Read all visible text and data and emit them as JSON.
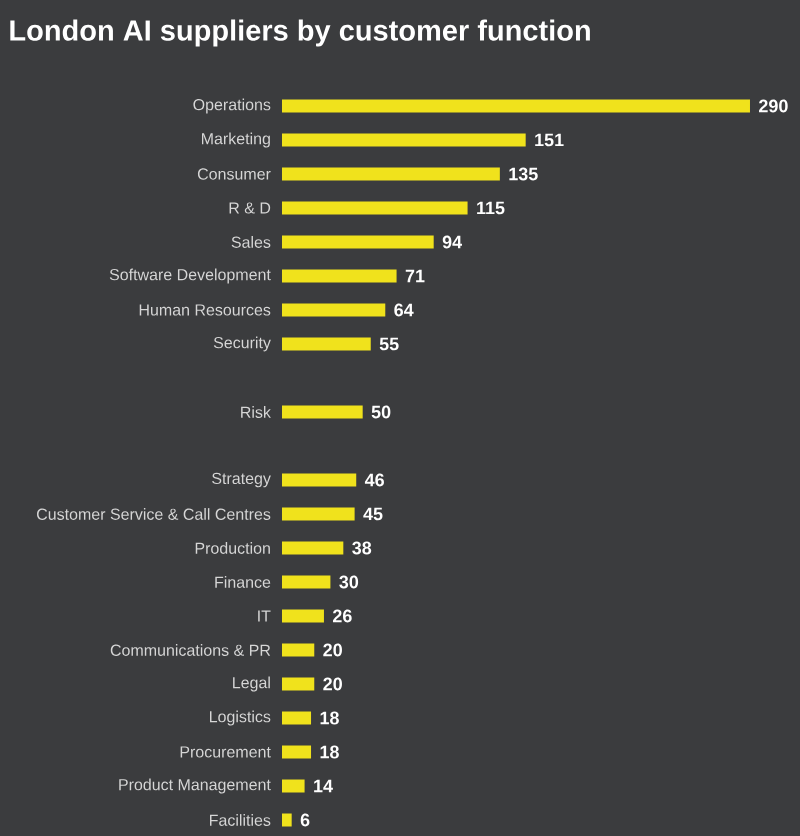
{
  "chart_data": {
    "type": "bar",
    "orientation": "horizontal",
    "title": "London AI suppliers by customer function",
    "categories": [
      "Operations",
      "Marketing",
      "Consumer",
      "R & D",
      "Sales",
      "Software Development",
      "Human Resources",
      "Security",
      null,
      "Risk",
      null,
      "Strategy",
      "Customer Service & Call Centres",
      "Production",
      "Finance",
      "IT",
      "Communications & PR",
      "Legal",
      "Logistics",
      "Procurement",
      "Product Management",
      "Facilities"
    ],
    "values": [
      290,
      151,
      135,
      115,
      94,
      71,
      64,
      55,
      null,
      50,
      null,
      46,
      45,
      38,
      30,
      26,
      20,
      20,
      18,
      18,
      14,
      6
    ],
    "color": "#f0e21c",
    "data_labels": true
  }
}
